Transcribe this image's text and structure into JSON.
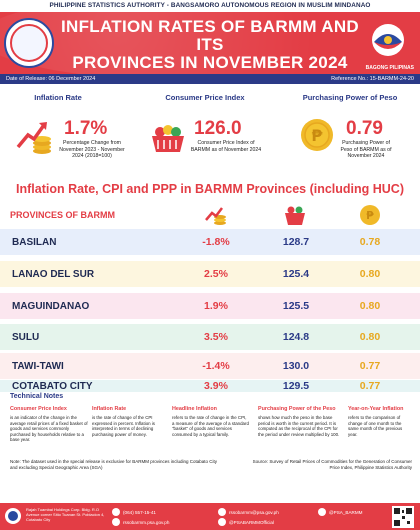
{
  "header": {
    "agency": "PHILIPPINE STATISTICS AUTHORITY - BANGSAMORO AUTONOMOUS REGION IN MUSLIM MINDANAO",
    "title_line1": "INFLATION RATES OF BARMM AND ITS",
    "title_line2": "PROVINCES IN NOVEMBER 2024",
    "right_logo_text": "BAGONG PILIPINAS",
    "date_of_release": "Date of Release: 06 December 2024",
    "reference_no": "Reference No.: 15-BARMM-24-20"
  },
  "kpis": {
    "inflation": {
      "head": "Inflation Rate",
      "value": "1.7%",
      "desc": "Percentage Change from November 2023 - November 2024 (2018=100)"
    },
    "cpi": {
      "head": "Consumer Price Index",
      "value": "126.0",
      "desc": "Consumer Price Index of BARMM as of November 2024"
    },
    "ppp": {
      "head": "Purchasing Power of Peso",
      "value": "0.79",
      "desc": "Purchasing Power of Peso of BARMM as of November 2024"
    }
  },
  "table": {
    "title": "Inflation Rate, CPI and PPP in BARMM Provinces (including HUC)",
    "col_province": "PROVINCES OF BARMM",
    "rows": [
      {
        "name": "BASILAN",
        "inflation": "-1.8%",
        "cpi": "128.7",
        "ppp": "0.78"
      },
      {
        "name": "LANAO DEL SUR",
        "inflation": "2.5%",
        "cpi": "125.4",
        "ppp": "0.80"
      },
      {
        "name": "MAGUINDANAO",
        "inflation": "1.9%",
        "cpi": "125.5",
        "ppp": "0.80"
      },
      {
        "name": "SULU",
        "inflation": "3.5%",
        "cpi": "124.8",
        "ppp": "0.80"
      },
      {
        "name": "TAWI-TAWI",
        "inflation": "-1.4%",
        "cpi": "130.0",
        "ppp": "0.77"
      },
      {
        "name": "COTABATO CITY",
        "inflation": "3.9%",
        "cpi": "129.5",
        "ppp": "0.77"
      }
    ],
    "row_colors": [
      "#e7eefb",
      "#fdf6df",
      "#fbe6ef",
      "#e5f4ec",
      "#fdeeee",
      "#e6f4f4"
    ]
  },
  "technical_notes": {
    "title": "Technical Notes",
    "items": [
      {
        "head": "Consumer Price Index",
        "body": "is an indicator of the change in the average retail prices of a fixed basket of goods and services commonly purchased by households relative to a base year."
      },
      {
        "head": "Inflation Rate",
        "body": "is the rate of change of the CPI expressed in percent. Inflation is interpreted in terms of declining purchasing power of money."
      },
      {
        "head": "Headline Inflation",
        "body": "refers to the rate of change in the CPI, a measure of the average of a standard \"basket\" of goods and services consumed by a typical family."
      },
      {
        "head": "Purchasing Power of the Peso",
        "body": "shows how much the peso in the base period is worth in the current period. It is computed as the reciprocal of the CPI for the period under review multiplied by 100."
      },
      {
        "head": "Year-on-Year Inflation",
        "body": "refers to the comparison of change of one month to the same month of the previous year."
      }
    ],
    "note": "Note:  The dataset used in the special release is exclusive for BARMM provinces including Cotabato City and excluding Special Geographic Area (SGA)",
    "source": "Source: Survey of Retail Prices of Commodities for the Generation of Consumer Price Index,  Philippine Statistics Authority"
  },
  "footer": {
    "address": "Rajah Tuambai Holdings Corp. Bldg. R.O Avenue corner Sitio Tuanan St. Poblacion 4, Cotabato City",
    "phone": "(064) 557-15-41",
    "email": "rssobarmm@psa.gov.ph",
    "website": "rssobarmm.psa.gov.ph",
    "facebook": "@PSABARMMOfficial",
    "twitter": "@PSA_BARMM"
  },
  "colors": {
    "accent": "#e33d45",
    "navy": "#2b3a87",
    "gold": "#e7a820"
  }
}
